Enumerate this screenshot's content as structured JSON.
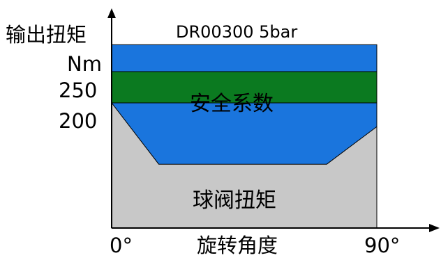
{
  "chart_data": {
    "type": "area",
    "title": "DR00300 5bar",
    "ylabel": "输出扭矩",
    "yunit": "Nm",
    "xlabel": "旋转角度",
    "xlim": [
      0,
      90
    ],
    "x_tick_labels": [
      "0°",
      "90°"
    ],
    "y_tick_labels": [
      "250",
      "200"
    ],
    "bands": [
      {
        "name": "安全系数",
        "y_from": 200,
        "y_to": 250,
        "color": "#0b7a20"
      }
    ],
    "series": [
      {
        "name": "球阀扭矩",
        "color": "#c8c8c8",
        "x": [
          0,
          16,
          73,
          90
        ],
        "y": [
          200,
          102,
          102,
          162
        ]
      },
      {
        "color": "#1a75dd",
        "x": [
          0,
          90
        ],
        "y": [
          293,
          293
        ]
      }
    ]
  }
}
